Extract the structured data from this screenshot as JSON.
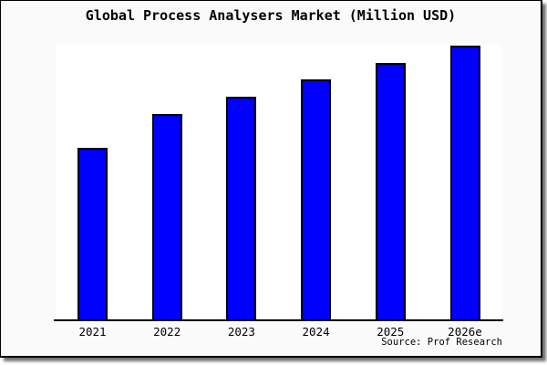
{
  "frame": {
    "background": "#fafafa",
    "border_color": "#000000",
    "plot_background": "#ffffff"
  },
  "chart_data": {
    "type": "bar",
    "title": "Global Process Analysers Market (Million USD)",
    "categories": [
      "2021",
      "2022",
      "2023",
      "2024",
      "2025",
      "2026e"
    ],
    "values_pct_of_max": [
      62.8,
      75.1,
      81.4,
      87.7,
      93.7,
      100
    ],
    "note": "No y-axis scale, tick labels or gridlines shown; values are bar heights relative to the tallest bar (2026e = 100)",
    "xlabel": "",
    "ylabel": "",
    "legend": "none",
    "gridlines": false,
    "bar_fill": "#0000ff",
    "bar_border": "#000000",
    "source": "Source: Prof Research"
  }
}
